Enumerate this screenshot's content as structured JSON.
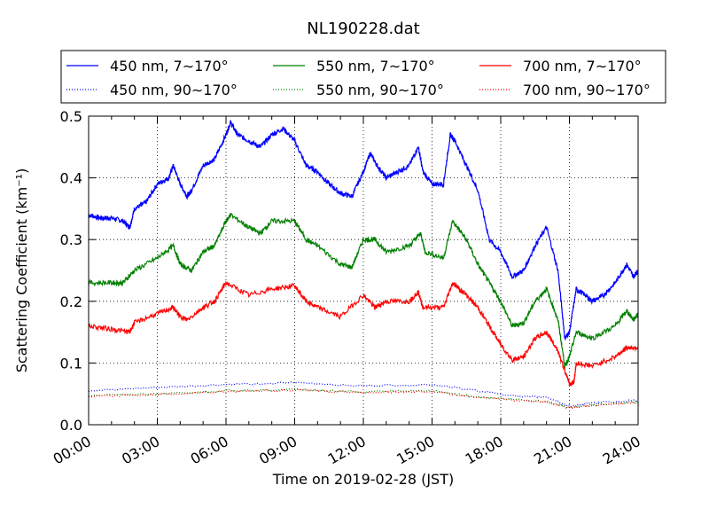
{
  "chart_data": {
    "type": "line",
    "title": "NL190228.dat",
    "xlabel": "Time on 2019-02-28 (JST)",
    "ylabel": "Scattering Coefficient (km⁻¹)",
    "xlim": [
      0,
      24
    ],
    "ylim": [
      0,
      0.5
    ],
    "grid": true,
    "legend_placement": "top, above plot, 3 columns",
    "x_ticks": [
      0,
      3,
      6,
      9,
      12,
      15,
      18,
      21,
      24
    ],
    "x_tick_labels": [
      "00:00",
      "03:00",
      "06:00",
      "09:00",
      "12:00",
      "15:00",
      "18:00",
      "21:00",
      "24:00"
    ],
    "y_ticks": [
      0,
      0.1,
      0.2,
      0.3,
      0.4,
      0.5
    ],
    "y_tick_labels": [
      "0.0",
      "0.1",
      "0.2",
      "0.3",
      "0.4",
      "0.5"
    ],
    "series": [
      {
        "name": "450 nm, 7∼170°",
        "color": "#0000ff",
        "style": "solid",
        "x": [
          0,
          0.5,
          1,
          1.5,
          1.8,
          2,
          2.5,
          3,
          3.5,
          3.7,
          4,
          4.3,
          4.5,
          5,
          5.5,
          6,
          6.2,
          6.5,
          7,
          7.5,
          8,
          8.5,
          9,
          9.5,
          10,
          10.5,
          11,
          11.5,
          12,
          12.3,
          12.6,
          13,
          13.5,
          14,
          14.4,
          14.6,
          15,
          15.5,
          15.8,
          16,
          16.5,
          17,
          17.5,
          18,
          18.5,
          19,
          19.5,
          20,
          20.5,
          20.8,
          21,
          21.3,
          21.7,
          22,
          22.5,
          23,
          23.5,
          23.8,
          24
        ],
        "y": [
          0.34,
          0.335,
          0.335,
          0.33,
          0.32,
          0.35,
          0.36,
          0.39,
          0.4,
          0.42,
          0.39,
          0.37,
          0.38,
          0.42,
          0.43,
          0.47,
          0.49,
          0.47,
          0.46,
          0.45,
          0.47,
          0.48,
          0.46,
          0.42,
          0.41,
          0.39,
          0.375,
          0.37,
          0.41,
          0.44,
          0.42,
          0.4,
          0.41,
          0.42,
          0.45,
          0.41,
          0.39,
          0.39,
          0.47,
          0.46,
          0.42,
          0.38,
          0.3,
          0.28,
          0.24,
          0.25,
          0.29,
          0.32,
          0.25,
          0.14,
          0.15,
          0.22,
          0.21,
          0.2,
          0.21,
          0.23,
          0.26,
          0.24,
          0.25
        ]
      },
      {
        "name": "550 nm, 7∼170°",
        "color": "#008000",
        "style": "solid",
        "x": [
          0,
          1,
          1.5,
          2,
          3,
          3.7,
          4,
          4.5,
          5,
          5.5,
          6,
          6.2,
          7,
          7.5,
          8,
          9,
          9.5,
          10,
          11,
          11.5,
          12,
          12.5,
          13,
          14,
          14.5,
          14.7,
          15.5,
          15.9,
          16.5,
          17,
          17.5,
          18,
          18.5,
          19,
          19.5,
          20,
          20.5,
          20.8,
          21,
          21.3,
          22,
          23,
          23.5,
          23.8,
          24
        ],
        "y": [
          0.23,
          0.23,
          0.23,
          0.25,
          0.27,
          0.29,
          0.26,
          0.25,
          0.28,
          0.29,
          0.33,
          0.34,
          0.32,
          0.31,
          0.33,
          0.33,
          0.3,
          0.29,
          0.26,
          0.255,
          0.3,
          0.3,
          0.28,
          0.29,
          0.31,
          0.28,
          0.27,
          0.33,
          0.3,
          0.26,
          0.23,
          0.2,
          0.16,
          0.165,
          0.2,
          0.22,
          0.17,
          0.095,
          0.11,
          0.15,
          0.14,
          0.16,
          0.185,
          0.17,
          0.18
        ]
      },
      {
        "name": "700 nm, 7∼170°",
        "color": "#ff0000",
        "style": "solid",
        "x": [
          0,
          1,
          1.8,
          2,
          3,
          3.7,
          4,
          4.3,
          5,
          5.5,
          6,
          7,
          8,
          9,
          9.5,
          10,
          11,
          12,
          12.5,
          13,
          14,
          14.4,
          14.6,
          15.5,
          15.9,
          16.5,
          17,
          17.5,
          18,
          18.5,
          19,
          19.5,
          20,
          20.5,
          21,
          21.2,
          21.3,
          22,
          23,
          23.5,
          24
        ],
        "y": [
          0.16,
          0.155,
          0.15,
          0.165,
          0.18,
          0.19,
          0.175,
          0.17,
          0.19,
          0.2,
          0.23,
          0.21,
          0.22,
          0.225,
          0.2,
          0.19,
          0.175,
          0.21,
          0.19,
          0.2,
          0.2,
          0.215,
          0.19,
          0.19,
          0.23,
          0.21,
          0.19,
          0.16,
          0.13,
          0.105,
          0.11,
          0.14,
          0.15,
          0.12,
          0.065,
          0.07,
          0.1,
          0.095,
          0.11,
          0.125,
          0.125
        ]
      },
      {
        "name": "450 nm, 90∼170°",
        "color": "#0000ff",
        "style": "dotted",
        "x": [
          0,
          3,
          6,
          9,
          12,
          15,
          17,
          19,
          20,
          21,
          22,
          24
        ],
        "y": [
          0.055,
          0.06,
          0.065,
          0.068,
          0.063,
          0.065,
          0.055,
          0.045,
          0.045,
          0.03,
          0.035,
          0.04
        ]
      },
      {
        "name": "550 nm, 90∼170°",
        "color": "#008000",
        "style": "dotted",
        "x": [
          0,
          3,
          6,
          9,
          12,
          15,
          17,
          19,
          20,
          21,
          22,
          24
        ],
        "y": [
          0.047,
          0.05,
          0.055,
          0.057,
          0.053,
          0.055,
          0.045,
          0.04,
          0.038,
          0.028,
          0.032,
          0.037
        ]
      },
      {
        "name": "700 nm, 90∼170°",
        "color": "#ff0000",
        "style": "dotted",
        "x": [
          0,
          3,
          6,
          9,
          12,
          15,
          17,
          19,
          20,
          21,
          22,
          24
        ],
        "y": [
          0.046,
          0.049,
          0.054,
          0.056,
          0.052,
          0.054,
          0.044,
          0.039,
          0.037,
          0.027,
          0.031,
          0.036
        ]
      }
    ]
  }
}
